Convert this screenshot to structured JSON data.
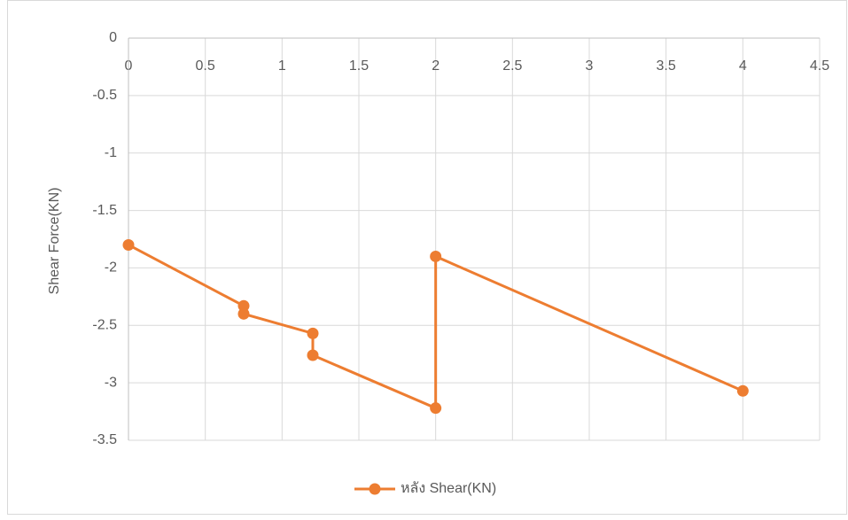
{
  "chart_data": {
    "type": "line",
    "y_label": "Shear Force(KN)",
    "x": [
      0,
      0.75,
      0.75,
      1.2,
      1.2,
      2,
      2,
      4
    ],
    "series": [
      {
        "name": "หลัง Shear(KN)",
        "color": "#ed7d31",
        "values": [
          -1.8,
          -2.33,
          -2.4,
          -2.57,
          -2.76,
          -3.22,
          -1.9,
          -3.07
        ]
      }
    ],
    "xlim": [
      0,
      4.5
    ],
    "xticks": [
      0,
      0.5,
      1,
      1.5,
      2,
      2.5,
      3,
      3.5,
      4,
      4.5
    ],
    "ylim": [
      -3.5,
      0
    ],
    "yticks": [
      0,
      -0.5,
      -1,
      -1.5,
      -2,
      -2.5,
      -3,
      -3.5
    ],
    "grid": true,
    "legend": "bottom"
  }
}
